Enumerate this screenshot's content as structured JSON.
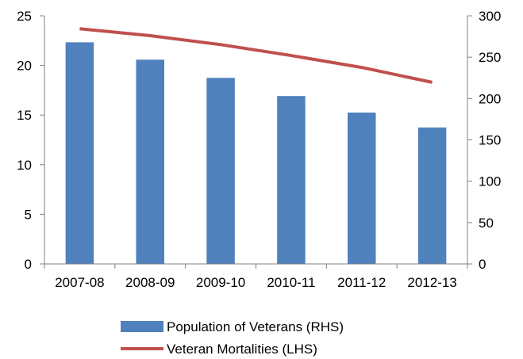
{
  "chart_data": {
    "type": "bar",
    "categories": [
      "2007-08",
      "2008-09",
      "2009-10",
      "2010-11",
      "2011-12",
      "2012-13"
    ],
    "series": [
      {
        "name": "Population of Veterans (RHS)",
        "type": "bar",
        "axis": "right",
        "values": [
          268,
          247,
          225,
          203,
          183,
          165
        ]
      },
      {
        "name": "Veteran Mortalities (LHS)",
        "type": "line",
        "axis": "left",
        "values": [
          23.7,
          23.0,
          22.1,
          21.0,
          19.8,
          18.3
        ]
      }
    ],
    "y_left": {
      "range": [
        0,
        25
      ],
      "ticks": [
        "0",
        "5",
        "10",
        "15",
        "20",
        "25"
      ]
    },
    "y_right": {
      "range": [
        0,
        300
      ],
      "ticks": [
        "0",
        "50",
        "100",
        "150",
        "200",
        "250",
        "300"
      ]
    },
    "grid": false,
    "legend": "bottom-center",
    "colors": {
      "bar": "#4F81BD",
      "line": "#C0504D",
      "axis": "#808080"
    }
  }
}
